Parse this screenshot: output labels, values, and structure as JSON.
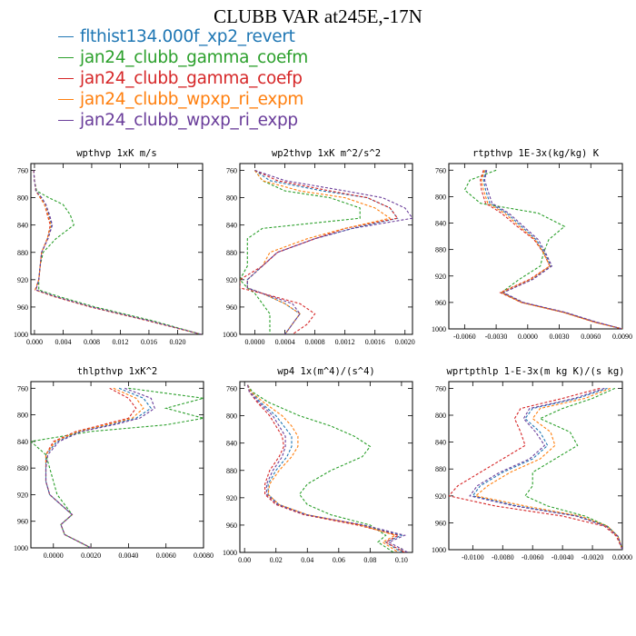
{
  "figure": {
    "title": "CLUBB VAR at245E,-17N"
  },
  "legend": [
    {
      "label": "flthist134.000f_xp2_revert",
      "color": "#1f77b4"
    },
    {
      "label": "jan24_clubb_gamma_coefm",
      "color": "#2ca02c"
    },
    {
      "label": "jan24_clubb_gamma_coefp",
      "color": "#d62728"
    },
    {
      "label": "jan24_clubb_wpxp_ri_expm",
      "color": "#ff7f0e"
    },
    {
      "label": "jan24_clubb_wpxp_ri_expp",
      "color": "#6a3d9a"
    }
  ],
  "chart_data": [
    {
      "type": "line",
      "title": "wpthvp  1xK m/s",
      "xlim": [
        -0.0005,
        0.0235
      ],
      "ylim": [
        1000,
        750
      ],
      "xticks": [
        "0.000",
        "0.004",
        "0.008",
        "0.012",
        "0.016",
        "0.020"
      ],
      "xtick_values": [
        0,
        0.004,
        0.008,
        0.012,
        0.016,
        0.02
      ],
      "yticks": [
        "760",
        "800",
        "840",
        "880",
        "920",
        "960",
        "1000"
      ],
      "ytick_values": [
        760,
        800,
        840,
        880,
        920,
        960,
        1000
      ],
      "pressure": [
        760,
        775,
        790,
        800,
        810,
        825,
        840,
        860,
        880,
        900,
        920,
        935,
        945,
        960,
        980,
        1000
      ],
      "series": [
        {
          "values": [
            -0.0001,
            0.0,
            0.0002,
            0.001,
            0.0016,
            0.002,
            0.0024,
            0.0018,
            0.001,
            0.0008,
            0.0006,
            0.0002,
            0.003,
            0.008,
            0.016,
            0.0233
          ]
        },
        {
          "values": [
            -0.0001,
            0.0,
            0.0003,
            0.002,
            0.004,
            0.005,
            0.0055,
            0.003,
            0.0012,
            0.0008,
            0.0006,
            0.0006,
            0.0035,
            0.0085,
            0.0165,
            0.0233
          ]
        },
        {
          "values": [
            -0.0001,
            0.0,
            0.0002,
            0.0008,
            0.0014,
            0.0018,
            0.0022,
            0.0018,
            0.001,
            0.0008,
            0.0006,
            0.0001,
            0.0028,
            0.0078,
            0.0158,
            0.0233
          ]
        },
        {
          "values": [
            -0.0001,
            0.0,
            0.0002,
            0.0008,
            0.0014,
            0.0019,
            0.0023,
            0.0018,
            0.001,
            0.0008,
            0.0006,
            0.0001,
            0.0029,
            0.0079,
            0.0159,
            0.0233
          ]
        },
        {
          "values": [
            -0.0001,
            0.0,
            0.0002,
            0.001,
            0.0016,
            0.0021,
            0.0025,
            0.0019,
            0.001,
            0.0008,
            0.0006,
            0.0002,
            0.003,
            0.008,
            0.016,
            0.0233
          ]
        }
      ]
    },
    {
      "type": "line",
      "title": "wp2thvp  1xK m^2/s^2",
      "xlim": [
        -0.0002,
        0.0021
      ],
      "ylim": [
        1000,
        750
      ],
      "xticks": [
        "0.0000",
        "0.0004",
        "0.0008",
        "0.0012",
        "0.0016",
        "0.0020"
      ],
      "xtick_values": [
        0,
        0.0004,
        0.0008,
        0.0012,
        0.0016,
        0.002
      ],
      "yticks": [
        "760",
        "800",
        "840",
        "880",
        "920",
        "960",
        "1000"
      ],
      "ytick_values": [
        760,
        800,
        840,
        880,
        920,
        960,
        1000
      ],
      "pressure": [
        760,
        775,
        790,
        800,
        815,
        830,
        845,
        860,
        880,
        900,
        920,
        932,
        940,
        955,
        970,
        985,
        1000
      ],
      "series": [
        {
          "values": [
            0.0,
            0.0002,
            0.0009,
            0.0015,
            0.0018,
            0.0019,
            0.0013,
            0.0008,
            0.0003,
            0.0001,
            -0.0001,
            -0.0001,
            0.0001,
            0.0004,
            0.0006,
            0.0005,
            0.0004
          ]
        },
        {
          "values": [
            0.0,
            0.0001,
            0.0004,
            0.001,
            0.0014,
            0.0014,
            0.0001,
            -0.0001,
            -0.0001,
            -0.0001,
            -0.0002,
            -0.0001,
            0.0,
            0.0001,
            0.0002,
            0.0002,
            0.0002
          ]
        },
        {
          "values": [
            0.0,
            0.0003,
            0.001,
            0.0015,
            0.0018,
            0.0019,
            0.0012,
            0.0008,
            0.0003,
            0.0001,
            -0.0002,
            -0.0002,
            0.0001,
            0.0006,
            0.0008,
            0.0007,
            0.0005
          ]
        },
        {
          "values": [
            0.0,
            0.0001,
            0.0006,
            0.0012,
            0.0016,
            0.0018,
            0.0012,
            0.0007,
            0.0002,
            0.0001,
            -0.0001,
            -0.0001,
            0.0001,
            0.0004,
            0.0006,
            0.0005,
            0.0004
          ]
        },
        {
          "values": [
            0.0,
            0.0004,
            0.0012,
            0.0017,
            0.002,
            0.0021,
            0.0013,
            0.0008,
            0.0003,
            0.0001,
            -0.0001,
            -0.0001,
            0.0001,
            0.0005,
            0.0006,
            0.0005,
            0.0004
          ]
        }
      ]
    },
    {
      "type": "line",
      "title": "rtpthvp  1E-3x(kg/kg) K",
      "xlim": [
        -0.0075,
        0.009
      ],
      "ylim": [
        1000,
        750
      ],
      "xticks": [
        "-0.0060",
        "-0.0030",
        "0.0000",
        "0.0030",
        "0.0060",
        "0.0090"
      ],
      "xtick_values": [
        -0.006,
        -0.003,
        0,
        0.003,
        0.006,
        0.009
      ],
      "yticks": [
        "760",
        "800",
        "840",
        "880",
        "920",
        "960",
        "1000"
      ],
      "ytick_values": [
        760,
        800,
        840,
        880,
        920,
        960,
        1000
      ],
      "pressure": [
        760,
        775,
        790,
        810,
        825,
        845,
        865,
        885,
        905,
        925,
        945,
        960,
        975,
        990,
        1000
      ],
      "series": [
        {
          "values": [
            -0.004,
            -0.0042,
            -0.004,
            -0.0036,
            -0.002,
            -0.0006,
            0.0008,
            0.0016,
            0.0022,
            0.0004,
            -0.0024,
            -0.0005,
            0.0035,
            0.0065,
            0.009
          ]
        },
        {
          "values": [
            -0.003,
            -0.0055,
            -0.006,
            -0.0045,
            0.001,
            0.0035,
            0.002,
            0.0015,
            0.0012,
            -0.0008,
            -0.0025,
            -0.0006,
            0.0034,
            0.0064,
            0.009
          ]
        },
        {
          "values": [
            -0.0042,
            -0.0045,
            -0.0044,
            -0.004,
            -0.0025,
            -0.001,
            0.0006,
            0.0015,
            0.0021,
            0.0002,
            -0.0026,
            -0.0006,
            0.0034,
            0.0064,
            0.009
          ]
        },
        {
          "values": [
            -0.0041,
            -0.0044,
            -0.0042,
            -0.0038,
            -0.0022,
            -0.0008,
            0.0007,
            0.0015,
            0.0021,
            0.0003,
            -0.0025,
            -0.0006,
            0.0034,
            0.0064,
            0.009
          ]
        },
        {
          "values": [
            -0.0039,
            -0.0041,
            -0.0038,
            -0.0034,
            -0.0018,
            -0.0004,
            0.001,
            0.0017,
            0.0023,
            0.0005,
            -0.0023,
            -0.0004,
            0.0036,
            0.0066,
            0.009
          ]
        }
      ]
    },
    {
      "type": "line",
      "title": "thlpthvp  1xK^2",
      "xlim": [
        -0.0012,
        0.008
      ],
      "ylim": [
        1000,
        750
      ],
      "xticks": [
        "0.0000",
        "0.0020",
        "0.0040",
        "0.0060",
        "0.0080"
      ],
      "xtick_values": [
        0,
        0.002,
        0.004,
        0.006,
        0.008
      ],
      "yticks": [
        "760",
        "800",
        "840",
        "880",
        "920",
        "960",
        "1000"
      ],
      "ytick_values": [
        760,
        800,
        840,
        880,
        920,
        960,
        1000
      ],
      "pressure": [
        760,
        775,
        790,
        805,
        815,
        825,
        840,
        860,
        880,
        900,
        920,
        935,
        950,
        965,
        980,
        1000
      ],
      "series": [
        {
          "values": [
            0.0035,
            0.0048,
            0.0052,
            0.0044,
            0.003,
            0.0014,
            0.0002,
            -0.0004,
            -0.0004,
            -0.0004,
            -0.0002,
            0.0004,
            0.001,
            0.0004,
            0.0006,
            0.002
          ]
        },
        {
          "values": [
            0.004,
            0.008,
            0.006,
            0.008,
            0.006,
            0.002,
            -0.0012,
            -0.0004,
            -0.0002,
            0.0,
            0.0002,
            0.0006,
            0.001,
            0.0004,
            0.0006,
            0.002
          ]
        },
        {
          "values": [
            0.003,
            0.004,
            0.0044,
            0.004,
            0.0026,
            0.0012,
            0.0,
            -0.0004,
            -0.0004,
            -0.0004,
            -0.0002,
            0.0004,
            0.001,
            0.0004,
            0.0006,
            0.002
          ]
        },
        {
          "values": [
            0.0032,
            0.0044,
            0.0048,
            0.0042,
            0.0028,
            0.0013,
            0.0001,
            -0.0004,
            -0.0004,
            -0.0004,
            -0.0002,
            0.0004,
            0.001,
            0.0004,
            0.0006,
            0.002
          ]
        },
        {
          "values": [
            0.0038,
            0.0052,
            0.0054,
            0.0046,
            0.0032,
            0.0015,
            0.0003,
            -0.0003,
            -0.0004,
            -0.0004,
            -0.0002,
            0.0004,
            0.001,
            0.0004,
            0.0006,
            0.002
          ]
        }
      ]
    },
    {
      "type": "line",
      "title": "wp4  1x(m^4)/(s^4)",
      "xlim": [
        -0.003,
        0.107
      ],
      "ylim": [
        1000,
        750
      ],
      "xticks": [
        "0.00",
        "0.02",
        "0.04",
        "0.06",
        "0.08",
        "0.10"
      ],
      "xtick_values": [
        0,
        0.02,
        0.04,
        0.06,
        0.08,
        0.1
      ],
      "yticks": [
        "760",
        "800",
        "840",
        "880",
        "920",
        "960",
        "1000"
      ],
      "ytick_values": [
        760,
        800,
        840,
        880,
        920,
        960,
        1000
      ],
      "pressure": [
        755,
        765,
        780,
        800,
        815,
        830,
        845,
        860,
        880,
        900,
        915,
        930,
        945,
        960,
        975,
        985,
        1000
      ],
      "series": [
        {
          "values": [
            0.002,
            0.004,
            0.01,
            0.02,
            0.025,
            0.03,
            0.03,
            0.027,
            0.02,
            0.015,
            0.015,
            0.022,
            0.04,
            0.075,
            0.1,
            0.09,
            0.1
          ]
        },
        {
          "values": [
            0.002,
            0.005,
            0.015,
            0.035,
            0.055,
            0.07,
            0.08,
            0.075,
            0.055,
            0.04,
            0.035,
            0.04,
            0.055,
            0.08,
            0.09,
            0.085,
            0.095
          ]
        },
        {
          "values": [
            0.002,
            0.003,
            0.008,
            0.016,
            0.02,
            0.024,
            0.025,
            0.022,
            0.016,
            0.013,
            0.013,
            0.02,
            0.038,
            0.072,
            0.098,
            0.09,
            0.102
          ]
        },
        {
          "values": [
            0.002,
            0.004,
            0.012,
            0.024,
            0.03,
            0.034,
            0.034,
            0.03,
            0.022,
            0.016,
            0.015,
            0.022,
            0.04,
            0.074,
            0.096,
            0.088,
            0.098
          ]
        },
        {
          "values": [
            0.002,
            0.003,
            0.009,
            0.018,
            0.022,
            0.026,
            0.026,
            0.024,
            0.018,
            0.014,
            0.014,
            0.021,
            0.039,
            0.076,
            0.102,
            0.092,
            0.104
          ]
        }
      ]
    },
    {
      "type": "line",
      "title": "wprtpthlp  1-E-3x(m kg K)/(s kg)",
      "xlim": [
        -0.0116,
        0.0
      ],
      "ylim": [
        1000,
        750
      ],
      "xticks": [
        "-0.0100",
        "-0.0080",
        "-0.0060",
        "-0.0040",
        "-0.0020",
        "0.0000"
      ],
      "xtick_values": [
        -0.01,
        -0.008,
        -0.006,
        -0.004,
        -0.002,
        0.0
      ],
      "yticks": [
        "760",
        "800",
        "840",
        "880",
        "920",
        "960",
        "1000"
      ],
      "ytick_values": [
        760,
        800,
        840,
        880,
        920,
        960,
        1000
      ],
      "pressure": [
        760,
        775,
        790,
        805,
        825,
        845,
        865,
        885,
        905,
        920,
        935,
        950,
        965,
        980,
        1000
      ],
      "series": [
        {
          "values": [
            -0.001,
            -0.003,
            -0.006,
            -0.0065,
            -0.0055,
            -0.005,
            -0.006,
            -0.008,
            -0.0095,
            -0.01,
            -0.007,
            -0.003,
            -0.001,
            -0.0003,
            0.0
          ]
        },
        {
          "values": [
            -0.0005,
            -0.002,
            -0.004,
            -0.0055,
            -0.0035,
            -0.003,
            -0.0045,
            -0.006,
            -0.006,
            -0.0065,
            -0.005,
            -0.0025,
            -0.001,
            -0.0003,
            0.0
          ]
        },
        {
          "values": [
            -0.0015,
            -0.004,
            -0.0068,
            -0.0072,
            -0.0068,
            -0.0065,
            -0.008,
            -0.0095,
            -0.011,
            -0.0116,
            -0.0085,
            -0.004,
            -0.0012,
            -0.0004,
            0.0
          ]
        },
        {
          "values": [
            -0.0008,
            -0.0025,
            -0.0055,
            -0.006,
            -0.0048,
            -0.0045,
            -0.0055,
            -0.0075,
            -0.009,
            -0.0098,
            -0.0065,
            -0.0028,
            -0.001,
            -0.0003,
            0.0
          ]
        },
        {
          "values": [
            -0.0012,
            -0.0032,
            -0.0062,
            -0.0066,
            -0.0058,
            -0.0052,
            -0.0062,
            -0.0082,
            -0.0097,
            -0.0102,
            -0.0072,
            -0.0031,
            -0.0011,
            -0.0003,
            0.0
          ]
        }
      ]
    }
  ]
}
